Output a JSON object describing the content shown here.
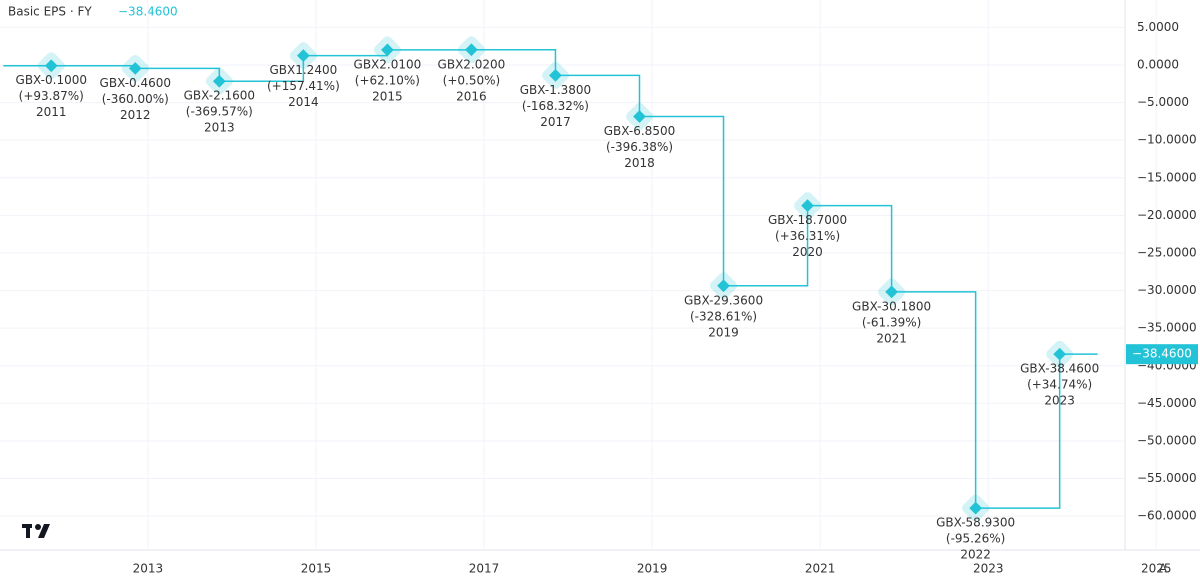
{
  "chart_data": {
    "type": "step",
    "title": "Basic EPS · FY",
    "last_label": "−38.4600",
    "categories": [
      "2011",
      "2012",
      "2013",
      "2014",
      "2015",
      "2016",
      "2017",
      "2018",
      "2019",
      "2020",
      "2021",
      "2022",
      "2023"
    ],
    "values": [
      -0.1,
      -0.46,
      -2.16,
      1.24,
      2.01,
      2.02,
      -1.38,
      -6.85,
      -29.36,
      -18.7,
      -30.18,
      -58.93,
      -38.46
    ],
    "value_labels": [
      "GBX-0.1000",
      "GBX-0.4600",
      "GBX-2.1600",
      "GBX1.2400",
      "GBX2.0100",
      "GBX2.0200",
      "GBX-1.3800",
      "GBX-6.8500",
      "GBX-29.3600",
      "GBX-18.7000",
      "GBX-30.1800",
      "GBX-58.9300",
      "GBX-38.4600"
    ],
    "change_labels": [
      "(+93.87%)",
      "(-360.00%)",
      "(-369.57%)",
      "(+157.41%)",
      "(+62.10%)",
      "(+0.50%)",
      "(-168.32%)",
      "(-396.38%)",
      "(-328.61%)",
      "(+36.31%)",
      "(-61.39%)",
      "(-95.26%)",
      "(+34.74%)"
    ],
    "color": "#22c3d6",
    "xlim": [
      2011.24,
      2025.52
    ],
    "xticks": [
      2013,
      2015,
      2017,
      2019,
      2021,
      2023,
      2025
    ],
    "ylim": [
      -64.5,
      8.64
    ],
    "yticks": [
      {
        "value": 5,
        "label": "5.0000"
      },
      {
        "value": 0,
        "label": "0.0000"
      },
      {
        "value": -5,
        "label": "−5.0000"
      },
      {
        "value": -10,
        "label": "−10.0000"
      },
      {
        "value": -15,
        "label": "−15.0000"
      },
      {
        "value": -20,
        "label": "−20.0000"
      },
      {
        "value": -25,
        "label": "−25.0000"
      },
      {
        "value": -30,
        "label": "−30.0000"
      },
      {
        "value": -35,
        "label": "−35.0000"
      },
      {
        "value": -40,
        "label": "−40.0000"
      },
      {
        "value": -45,
        "label": "−45.0000"
      },
      {
        "value": -50,
        "label": "−50.0000"
      },
      {
        "value": -55,
        "label": "−55.0000"
      },
      {
        "value": -60,
        "label": "−60.0000"
      }
    ],
    "grid": true,
    "scale_button": "A"
  }
}
